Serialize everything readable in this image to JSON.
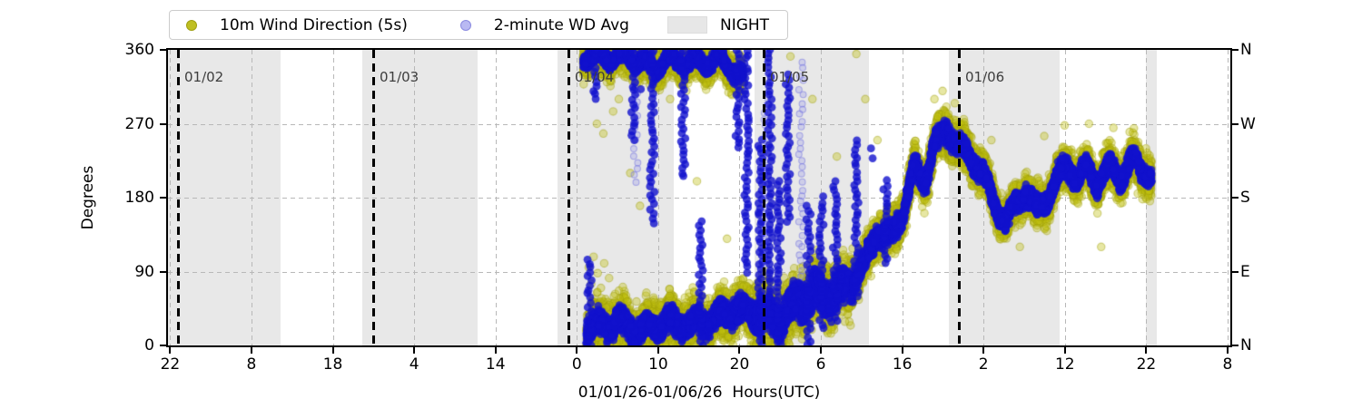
{
  "chart_data": {
    "type": "scatter",
    "xlabel": "01/01/26-01/06/26  Hours(UTC)",
    "ylabel": "Degrees",
    "ylim": [
      0,
      360
    ],
    "yticks": [
      0,
      90,
      180,
      270,
      360
    ],
    "ytick_labels_left": [
      "0",
      "90",
      "180",
      "270",
      "360"
    ],
    "ytick_labels_right": [
      "N",
      "E",
      "S",
      "W",
      "N"
    ],
    "xtick_labels": [
      "22",
      "8",
      "18",
      "4",
      "14",
      "0",
      "10",
      "20",
      "6",
      "16",
      "2",
      "12",
      "22",
      "8"
    ],
    "xtick_first_hour": -0.96,
    "xtick_step_hours": 10,
    "grid": true,
    "legend_position": "top",
    "legend": {
      "series_5s": "10m Wind Direction (5s)",
      "series_avg": "2-minute WD Avg",
      "night": "NIGHT"
    },
    "day_lines": [
      {
        "label": "01/02",
        "hour": 0
      },
      {
        "label": "01/03",
        "hour": 24
      },
      {
        "label": "01/04",
        "hour": 48
      },
      {
        "label": "01/05",
        "hour": 72
      },
      {
        "label": "01/06",
        "hour": 96
      }
    ],
    "night_bands_hours": [
      [
        -1.3,
        12.6
      ],
      [
        22.7,
        36.8
      ],
      [
        46.7,
        60.9
      ],
      [
        70.9,
        85.0
      ],
      [
        94.8,
        108.4
      ],
      [
        119.0,
        120.35
      ]
    ],
    "colors": {
      "wind_5s": "#bfbf10",
      "wd_avg": "#1212cd",
      "wd_avg_light": "#8c8ce8",
      "night_band": "#e8e8e8",
      "gridline": "#b8b8b8",
      "day_line": "#000000",
      "day_label": "#3d3d3d"
    },
    "scatter_model": {
      "seed": 7,
      "note_hours_reference": "hours since 01/02 00:00 UTC; data gap until hour 49.8 (01/04 ~02:00)",
      "paths": {
        "p_top": [
          [
            49.8,
            352
          ],
          [
            56,
            350
          ],
          [
            58.5,
            338
          ],
          [
            60,
            348
          ],
          [
            64,
            344
          ],
          [
            66.5,
            348
          ],
          [
            68,
            338
          ],
          [
            69.5,
            325
          ]
        ],
        "p_bot": [
          [
            50.2,
            20
          ],
          [
            54,
            28
          ],
          [
            57,
            18
          ],
          [
            60,
            30
          ],
          [
            63,
            25
          ],
          [
            66,
            32
          ],
          [
            68.5,
            45
          ],
          [
            71,
            38
          ]
        ],
        "p_n4": [
          [
            71,
            45
          ],
          [
            73.5,
            28
          ],
          [
            76,
            50
          ],
          [
            78.5,
            65
          ],
          [
            80.5,
            60
          ],
          [
            83,
            80
          ]
        ],
        "p_rise": [
          [
            83,
            80
          ],
          [
            84.5,
            100
          ],
          [
            86,
            140
          ],
          [
            87.5,
            130
          ],
          [
            89,
            160
          ],
          [
            90.5,
            215
          ],
          [
            91.8,
            200
          ],
          [
            93,
            245
          ],
          [
            94.7,
            262
          ]
        ],
        "p_end": [
          [
            94.7,
            262
          ],
          [
            96.2,
            240
          ],
          [
            97.6,
            228
          ],
          [
            99,
            208
          ],
          [
            100.4,
            172
          ],
          [
            101.8,
            150
          ],
          [
            103,
            172
          ],
          [
            104.2,
            188
          ],
          [
            105.6,
            164
          ],
          [
            107,
            182
          ],
          [
            108.2,
            204
          ],
          [
            109.4,
            220
          ],
          [
            110.6,
            202
          ],
          [
            111.8,
            216
          ],
          [
            113,
            198
          ],
          [
            114.5,
            216
          ],
          [
            116,
            206
          ],
          [
            117.4,
            226
          ],
          [
            118.6,
            214
          ],
          [
            119.7,
            206
          ]
        ]
      },
      "bands": [
        {
          "series": "avg",
          "path": "p_top",
          "spread": 9,
          "pph": 120,
          "clamp": [
            240,
            360
          ]
        },
        {
          "series": "5s",
          "path": "p_top",
          "spread": 24,
          "pph": 150,
          "clamp": [
            200,
            360
          ]
        },
        {
          "series": "avg",
          "path": "p_bot",
          "spread": 15,
          "pph": 120,
          "clamp": [
            0,
            200
          ]
        },
        {
          "series": "5s",
          "path": "p_bot",
          "spread": 32,
          "pph": 150,
          "clamp": [
            0,
            250
          ]
        },
        {
          "series": "avg",
          "path": "p_n4",
          "spread": 22,
          "pph": 110,
          "clamp": [
            0,
            360
          ]
        },
        {
          "series": "5s",
          "path": "p_n4",
          "spread": 40,
          "pph": 140,
          "clamp": [
            0,
            360
          ]
        },
        {
          "series": "avg",
          "path": "p_rise",
          "spread": 13,
          "pph": 130,
          "clamp": [
            0,
            360
          ]
        },
        {
          "series": "5s",
          "path": "p_rise",
          "spread": 28,
          "pph": 160,
          "clamp": [
            0,
            360
          ]
        },
        {
          "series": "avg",
          "path": "p_end",
          "spread": 12,
          "pph": 130,
          "clamp": [
            0,
            360
          ]
        },
        {
          "series": "5s",
          "path": "p_end",
          "spread": 26,
          "pph": 160,
          "clamp": [
            0,
            360
          ]
        }
      ],
      "columns": [
        {
          "series": "avg",
          "hour": 50.6,
          "deg": [
            0,
            105
          ]
        },
        {
          "series": "avg",
          "hour": 51.2,
          "deg": [
            300,
            360
          ]
        },
        {
          "series": "avg",
          "hour": 56.0,
          "deg": [
            250,
            360
          ]
        },
        {
          "series": "avg_light",
          "hour": 56.3,
          "deg": [
            200,
            330
          ]
        },
        {
          "series": "avg",
          "hour": 58.3,
          "deg": [
            150,
            360
          ]
        },
        {
          "series": "avg",
          "hour": 62.1,
          "deg": [
            205,
            360
          ]
        },
        {
          "series": "avg",
          "hour": 64.3,
          "deg": [
            0,
            150
          ]
        },
        {
          "series": "avg",
          "hour": 68.8,
          "deg": [
            240,
            360
          ]
        },
        {
          "series": "avg",
          "hour": 69.9,
          "deg": [
            90,
            360
          ]
        },
        {
          "series": "avg",
          "hour": 71.6,
          "deg": [
            0,
            250
          ]
        },
        {
          "series": "avg_light",
          "hour": 72.2,
          "deg": [
            90,
            300
          ]
        },
        {
          "series": "avg",
          "hour": 72.8,
          "deg": [
            60,
            360
          ]
        },
        {
          "series": "avg",
          "hour": 73.9,
          "deg": [
            0,
            200
          ]
        },
        {
          "series": "avg",
          "hour": 75.0,
          "deg": [
            150,
            330
          ]
        },
        {
          "series": "avg_light",
          "hour": 76.6,
          "deg": [
            45,
            345
          ]
        },
        {
          "series": "avg",
          "hour": 77.5,
          "deg": [
            0,
            170
          ]
        },
        {
          "series": "avg",
          "hour": 79.1,
          "deg": [
            20,
            180
          ]
        },
        {
          "series": "avg",
          "hour": 80.8,
          "deg": [
            30,
            200
          ]
        },
        {
          "series": "avg",
          "hour": 83.4,
          "deg": [
            60,
            250
          ]
        },
        {
          "series": "avg",
          "hour": 87.0,
          "deg": [
            100,
            200
          ]
        }
      ],
      "outliers": [
        {
          "series": "5s",
          "points": [
            [
              50.5,
              95
            ],
            [
              50.8,
              75
            ],
            [
              51.1,
              108
            ],
            [
              51.6,
              88
            ],
            [
              52.0,
              70
            ],
            [
              52.4,
              100
            ],
            [
              53.0,
              82
            ],
            [
              53.6,
              60
            ],
            [
              51.5,
              270
            ],
            [
              52.3,
              258
            ],
            [
              53.5,
              285
            ],
            [
              54.2,
              300
            ],
            [
              55.6,
              210
            ],
            [
              56.8,
              170
            ],
            [
              59.0,
              320
            ],
            [
              60.5,
              300
            ],
            [
              62.5,
              310
            ],
            [
              63.8,
              200
            ],
            [
              65.0,
              320
            ],
            [
              66.2,
              55
            ],
            [
              67.5,
              130
            ],
            [
              72.5,
              352
            ],
            [
              75.3,
              352
            ],
            [
              78.0,
              300
            ],
            [
              81.0,
              230
            ],
            [
              83.4,
              355
            ],
            [
              84.5,
              300
            ],
            [
              86.0,
              250
            ],
            [
              93.0,
              300
            ],
            [
              94.0,
              310
            ],
            [
              95.5,
              295
            ],
            [
              100.0,
              250
            ],
            [
              103.5,
              120
            ],
            [
              106.5,
              255
            ],
            [
              109.0,
              268
            ],
            [
              112.0,
              270
            ],
            [
              113.5,
              120
            ],
            [
              115.0,
              265
            ],
            [
              117.0,
              260
            ],
            [
              118.0,
              185
            ],
            [
              119.0,
              240
            ]
          ]
        },
        {
          "series": "avg",
          "points": [
            [
              56.9,
              312
            ],
            [
              85.2,
              240
            ],
            [
              85.4,
              228
            ]
          ]
        }
      ]
    }
  }
}
